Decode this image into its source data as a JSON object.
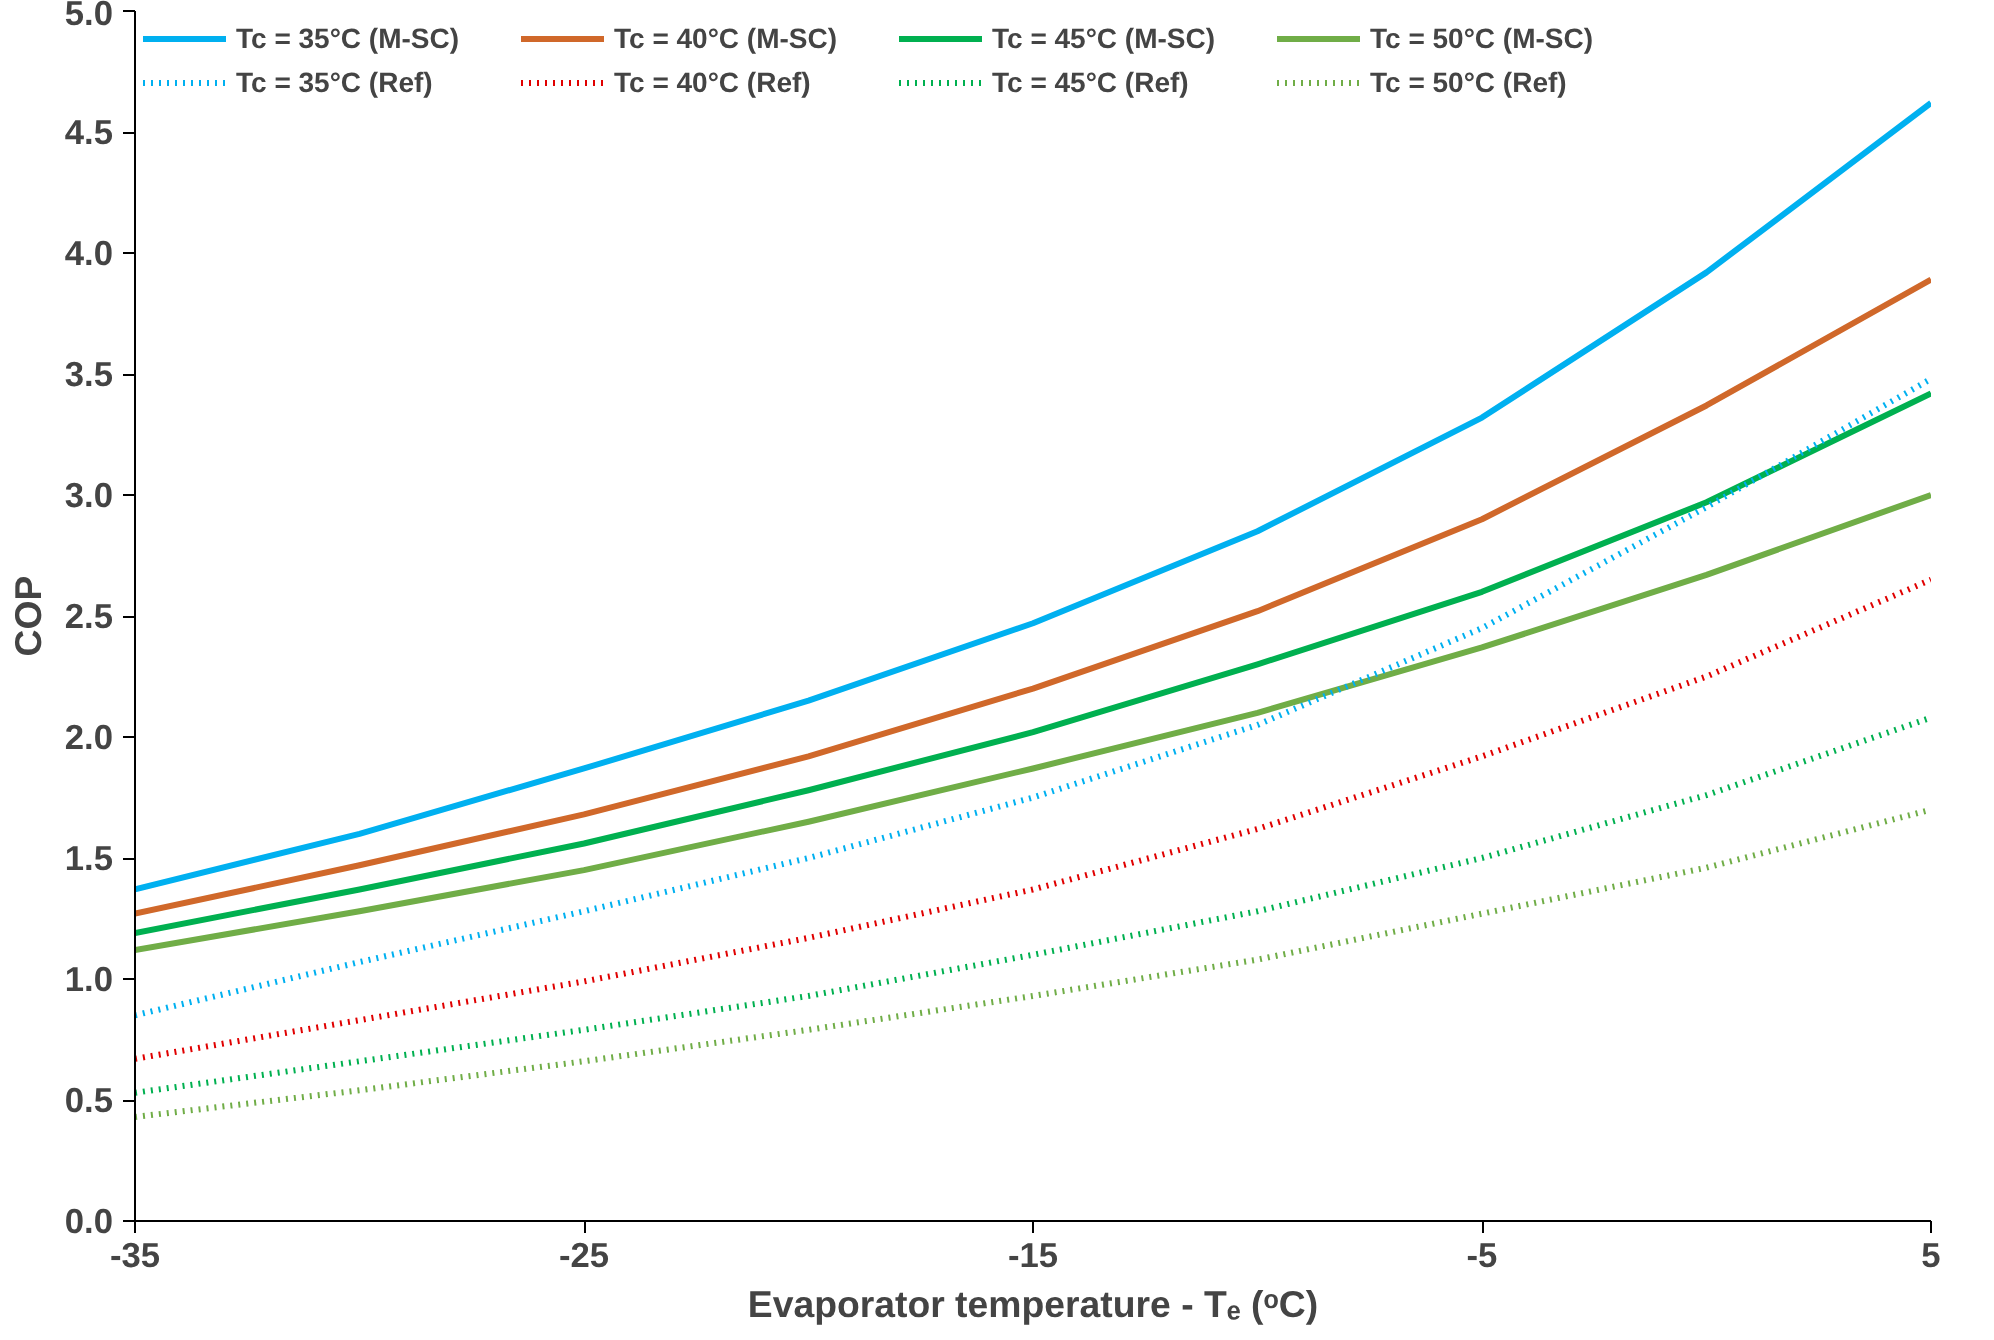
{
  "chart_data": {
    "type": "line",
    "xlabel": "Evaporator temperature - Tₑ (ᵒC)",
    "ylabel": "COP",
    "x": [
      -35,
      -30,
      -25,
      -20,
      -15,
      -10,
      -5,
      0,
      5
    ],
    "xlim": [
      -35,
      5
    ],
    "xticks": [
      -35,
      -25,
      -15,
      -5,
      5
    ],
    "ylim": [
      0,
      5
    ],
    "yticks": [
      {
        "value": 0,
        "label": "0.0"
      },
      0.5,
      {
        "value": 1,
        "label": "1.0"
      },
      1.5,
      {
        "value": 2,
        "label": "2.0"
      },
      2.5,
      {
        "value": 3,
        "label": "3.0"
      },
      3.5,
      {
        "value": 4,
        "label": "4.0"
      },
      4.5,
      {
        "value": 5,
        "label": "5.0"
      }
    ],
    "grid": false,
    "legend": "top",
    "marker": "none",
    "series": [
      {
        "name": "Tc = 35°C (M-SC)",
        "color": "#00b0f0",
        "line_style": "solid",
        "values": [
          1.37,
          1.6,
          1.87,
          2.15,
          2.47,
          2.85,
          3.32,
          3.92,
          4.62
        ]
      },
      {
        "name": "Tc = 40°C (M-SC)",
        "color": "#d0682a",
        "line_style": "solid",
        "values": [
          1.27,
          1.47,
          1.68,
          1.92,
          2.2,
          2.52,
          2.9,
          3.37,
          3.89
        ]
      },
      {
        "name": "Tc = 45°C (M-SC)",
        "color": "#00b050",
        "line_style": "solid",
        "values": [
          1.19,
          1.37,
          1.56,
          1.78,
          2.02,
          2.3,
          2.6,
          2.97,
          3.42
        ]
      },
      {
        "name": "Tc = 50°C (M-SC)",
        "color": "#70ad47",
        "line_style": "solid",
        "values": [
          1.12,
          1.28,
          1.45,
          1.65,
          1.87,
          2.1,
          2.37,
          2.67,
          3.0
        ]
      },
      {
        "name": "Tc = 35°C (Ref)",
        "color": "#00b0f0",
        "line_style": "dotted",
        "values": [
          0.85,
          1.07,
          1.28,
          1.5,
          1.75,
          2.05,
          2.45,
          2.95,
          3.48
        ]
      },
      {
        "name": "Tc = 40°C (Ref)",
        "color": "#e00000",
        "line_style": "dotted",
        "values": [
          0.67,
          0.83,
          0.99,
          1.17,
          1.37,
          1.62,
          1.92,
          2.25,
          2.65
        ]
      },
      {
        "name": "Tc = 45°C (Ref)",
        "color": "#00b050",
        "line_style": "dotted",
        "values": [
          0.53,
          0.66,
          0.79,
          0.93,
          1.1,
          1.28,
          1.5,
          1.76,
          2.08
        ]
      },
      {
        "name": "Tc = 50°C (Ref)",
        "color": "#70ad47",
        "line_style": "dotted",
        "values": [
          0.43,
          0.54,
          0.66,
          0.79,
          0.93,
          1.08,
          1.27,
          1.46,
          1.7
        ]
      }
    ]
  }
}
